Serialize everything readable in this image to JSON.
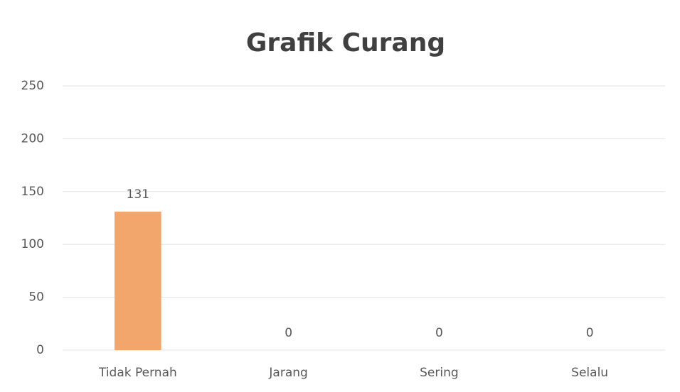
{
  "chart_data": {
    "type": "bar",
    "title": "Grafik Curang",
    "categories": [
      "Tidak Pernah",
      "Jarang",
      "Sering",
      "Selalu"
    ],
    "values": [
      131,
      0,
      0,
      0
    ],
    "color": "#f2a66b",
    "ylim": [
      0,
      250
    ],
    "yticks": [
      0,
      50,
      100,
      150,
      200,
      250
    ],
    "grid": true
  }
}
